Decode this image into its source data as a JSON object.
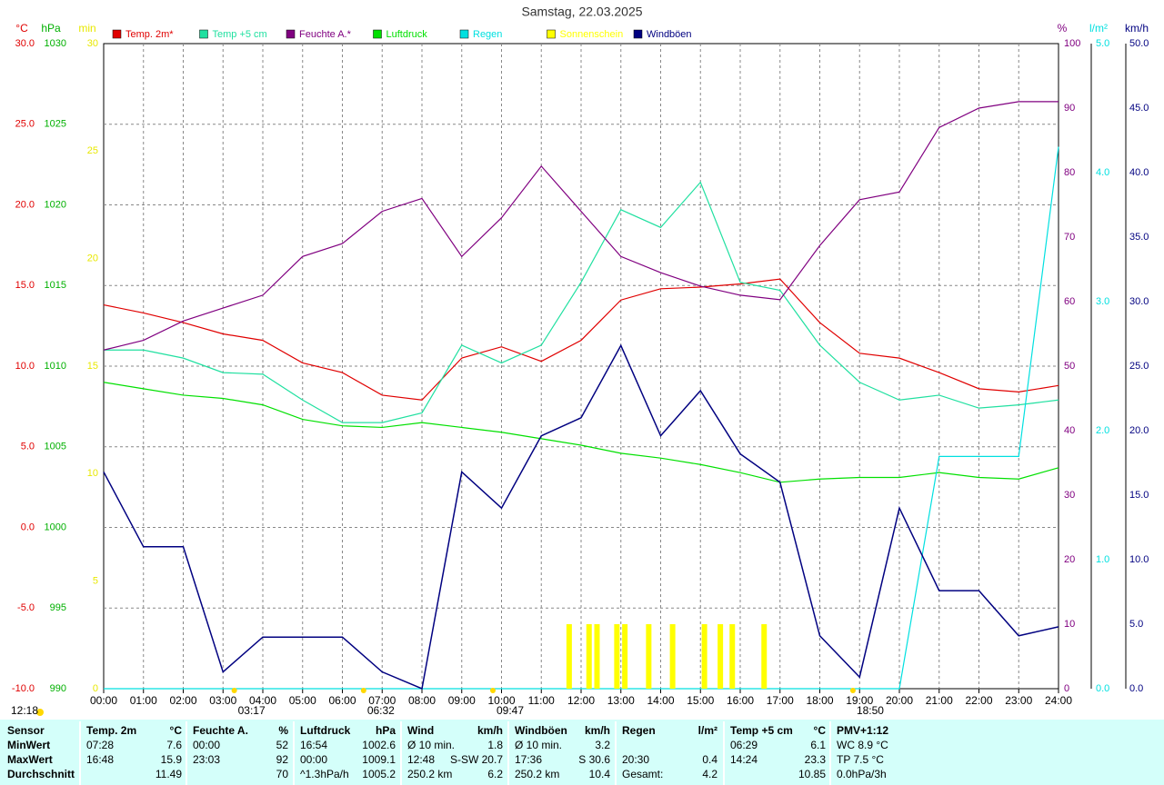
{
  "chart_data": {
    "type": "line",
    "title": "Samstag, 22.03.2025",
    "xticks": [
      {
        "value": 0,
        "label": "00:00"
      },
      {
        "value": 1,
        "label": "01:00"
      },
      {
        "value": 2,
        "label": "02:00"
      },
      {
        "value": 3,
        "label": "03:00"
      },
      {
        "value": 4,
        "label": "04:00"
      },
      {
        "value": 5,
        "label": "05:00"
      },
      {
        "value": 6,
        "label": "06:00"
      },
      {
        "value": 7,
        "label": "07:00"
      },
      {
        "value": 8,
        "label": "08:00"
      },
      {
        "value": 9,
        "label": "09:00"
      },
      {
        "value": 10,
        "label": "10:00"
      },
      {
        "value": 11,
        "label": "11:00"
      },
      {
        "value": 12,
        "label": "12:00"
      },
      {
        "value": 13,
        "label": "13:00"
      },
      {
        "value": 14,
        "label": "14:00"
      },
      {
        "value": 15,
        "label": "15:00"
      },
      {
        "value": 16,
        "label": "16:00"
      },
      {
        "value": 17,
        "label": "17:00"
      },
      {
        "value": 18,
        "label": "18:00"
      },
      {
        "value": 19,
        "label": "19:00"
      },
      {
        "value": 20,
        "label": "20:00"
      },
      {
        "value": 21,
        "label": "21:00"
      },
      {
        "value": 22,
        "label": "22:00"
      },
      {
        "value": 23,
        "label": "23:00"
      },
      {
        "value": 24,
        "label": "24:00"
      }
    ],
    "xlim": [
      0,
      24
    ],
    "grid": true,
    "axes": {
      "temp": {
        "label": "°C",
        "color": "#e00000",
        "lim": [
          -10,
          30
        ],
        "ticks": [
          {
            "value": 30,
            "label": "30.0"
          },
          {
            "value": 25,
            "label": "25.0"
          },
          {
            "value": 20,
            "label": "20.0"
          },
          {
            "value": 15,
            "label": "15.0"
          },
          {
            "value": 10,
            "label": "10.0"
          },
          {
            "value": 5,
            "label": "5.0"
          },
          {
            "value": 0,
            "label": "0.0"
          },
          {
            "value": -5,
            "label": "-5.0"
          },
          {
            "value": -10,
            "label": "-10.0"
          }
        ]
      },
      "press": {
        "label": "hPa",
        "color": "#00b000",
        "lim": [
          990,
          1030
        ],
        "ticks": [
          1030,
          1025,
          1020,
          1015,
          1010,
          1005,
          1000,
          995,
          990
        ]
      },
      "sun": {
        "label": "min",
        "color": "#e8e800",
        "lim": [
          0,
          30
        ],
        "ticks": [
          30,
          25,
          20,
          15,
          10,
          5,
          0
        ]
      },
      "hum": {
        "label": "%",
        "color": "#800080",
        "lim": [
          0,
          100
        ],
        "ticks": [
          100,
          90,
          80,
          70,
          60,
          50,
          40,
          30,
          20,
          10,
          0
        ]
      },
      "rain": {
        "label": "l/m²",
        "color": "#00e0e0",
        "lim": [
          0,
          5
        ],
        "ticks": [
          {
            "value": 5,
            "label": "5.0"
          },
          {
            "value": 4,
            "label": "4.0"
          },
          {
            "value": 3,
            "label": "3.0"
          },
          {
            "value": 2,
            "label": "2.0"
          },
          {
            "value": 1,
            "label": "1.0"
          },
          {
            "value": 0,
            "label": "0.0"
          }
        ]
      },
      "wind": {
        "label": "km/h",
        "color": "#000080",
        "lim": [
          0,
          50
        ],
        "ticks": [
          {
            "value": 50,
            "label": "50.0"
          },
          {
            "value": 45,
            "label": "45.0"
          },
          {
            "value": 40,
            "label": "40.0"
          },
          {
            "value": 35,
            "label": "35.0"
          },
          {
            "value": 30,
            "label": "30.0"
          },
          {
            "value": 25,
            "label": "25.0"
          },
          {
            "value": 20,
            "label": "20.0"
          },
          {
            "value": 15,
            "label": "15.0"
          },
          {
            "value": 10,
            "label": "10.0"
          },
          {
            "value": 5,
            "label": "5.0"
          },
          {
            "value": 0,
            "label": "0.0"
          }
        ]
      }
    },
    "x": [
      0,
      1,
      2,
      3,
      4,
      5,
      6,
      7,
      8,
      9,
      10,
      11,
      12,
      13,
      14,
      15,
      16,
      17,
      18,
      19,
      20,
      21,
      22,
      23,
      24
    ],
    "series": [
      {
        "name": "Temp. 2m*",
        "color": "#e00000",
        "axis": "temp",
        "values": [
          13.8,
          13.3,
          12.7,
          12.0,
          11.6,
          10.2,
          9.6,
          8.2,
          7.9,
          10.5,
          11.2,
          10.3,
          11.6,
          14.1,
          14.8,
          14.9,
          15.1,
          15.4,
          12.7,
          10.8,
          10.5,
          9.6,
          8.6,
          8.4,
          8.8
        ]
      },
      {
        "name": "Temp +5 cm",
        "color": "#20e0a0",
        "axis": "temp",
        "values": [
          11.0,
          11.0,
          10.5,
          9.6,
          9.5,
          7.9,
          6.5,
          6.5,
          7.1,
          11.3,
          10.2,
          11.3,
          15.2,
          19.7,
          18.6,
          21.4,
          15.2,
          14.7,
          11.3,
          9.0,
          7.9,
          8.2,
          7.4,
          7.6,
          7.9
        ]
      },
      {
        "name": "Feuchte A.*",
        "color": "#800080",
        "axis": "hum",
        "values": [
          52.5,
          54,
          57,
          59,
          61,
          67,
          69,
          74,
          76,
          67,
          73,
          81,
          74,
          67,
          64.5,
          62.4,
          61,
          60.3,
          68.7,
          75.8,
          77,
          87,
          90,
          91,
          91
        ]
      },
      {
        "name": "Luftdruck",
        "color": "#00e000",
        "axis": "press",
        "values": [
          1009.0,
          1008.6,
          1008.2,
          1008.0,
          1007.6,
          1006.7,
          1006.3,
          1006.2,
          1006.5,
          1006.2,
          1005.9,
          1005.5,
          1005.1,
          1004.6,
          1004.3,
          1003.9,
          1003.4,
          1002.8,
          1003.0,
          1003.1,
          1003.1,
          1003.4,
          1003.1,
          1003.0,
          1003.7
        ]
      },
      {
        "name": "Regen",
        "color": "#00e0e0",
        "axis": "rain",
        "values": [
          0,
          0,
          0,
          0,
          0,
          0,
          0,
          0,
          0,
          0,
          0,
          0,
          0,
          0,
          0,
          0,
          0,
          0,
          0,
          0,
          0,
          1.8,
          1.8,
          1.8,
          4.2
        ]
      },
      {
        "name": "Sonnenschein",
        "color": "#ffff00",
        "axis": "sun",
        "kind": "bar",
        "x": [
          11.7,
          12.2,
          12.4,
          12.9,
          13.1,
          13.7,
          14.3,
          15.1,
          15.5,
          15.8,
          16.6
        ],
        "values": [
          3,
          3,
          3,
          3,
          3,
          3,
          3,
          3,
          3,
          3,
          3
        ]
      },
      {
        "name": "Windböen",
        "color": "#000080",
        "axis": "wind",
        "values": [
          16.8,
          11,
          11,
          1.3,
          4,
          4,
          4,
          1.3,
          0,
          16.8,
          14,
          19.6,
          21,
          26.6,
          19.6,
          23.1,
          18.2,
          16,
          4.1,
          0.9,
          14,
          7.6,
          7.6,
          4.1,
          4.8
        ]
      }
    ],
    "day_length": "12:18",
    "annotations": [
      {
        "text": "03:17",
        "x": 3.283
      },
      {
        "text": "06:32",
        "x": 6.533
      },
      {
        "text": "09:47",
        "x": 9.783
      },
      {
        "text": "18:50",
        "x": 18.833
      }
    ]
  },
  "table": {
    "corner": "Sensor",
    "row_labels": [
      "MinWert",
      "MaxWert",
      "Durchschnitt"
    ],
    "columns": [
      {
        "name": "Temp. 2m",
        "unit": "°C",
        "cells": [
          [
            "07:28",
            "7.6"
          ],
          [
            "16:48",
            "15.9"
          ],
          [
            "11.49"
          ]
        ]
      },
      {
        "name": "Feuchte A.",
        "unit": "%",
        "cells": [
          [
            "00:00",
            "52"
          ],
          [
            "23:03",
            "92"
          ],
          [
            "70"
          ]
        ]
      },
      {
        "name": "Luftdruck",
        "unit": "hPa",
        "cells": [
          [
            "16:54",
            "1002.6"
          ],
          [
            "00:00",
            "1009.1"
          ],
          [
            "^1.3hPa/h",
            "1005.2"
          ]
        ]
      },
      {
        "name": "Wind",
        "unit": "km/h",
        "cells": [
          [
            "Ø 10 min.",
            "1.8"
          ],
          [
            "12:48",
            "S-SW 20.7"
          ],
          [
            "250.2 km",
            "6.2"
          ]
        ]
      },
      {
        "name": "Windböen",
        "unit": "km/h",
        "cells": [
          [
            "Ø 10 min.",
            "3.2"
          ],
          [
            "17:36",
            "S 30.6"
          ],
          [
            "250.2 km",
            "10.4"
          ]
        ]
      },
      {
        "name": "Regen",
        "unit": "l/m²",
        "cells": [
          [],
          [
            "20:30",
            "0.4"
          ],
          [
            "Gesamt:",
            "4.2"
          ]
        ]
      },
      {
        "name": "Temp +5 cm",
        "unit": "°C",
        "cells": [
          [
            "06:29",
            "6.1"
          ],
          [
            "14:24",
            "23.3"
          ],
          [
            "10.85"
          ]
        ]
      },
      {
        "name": "PMV+1:12",
        "cells": [
          [
            "WC 8.9 °C"
          ],
          [
            "TP 7.5 °C"
          ],
          [
            "0.0hPa/3h"
          ]
        ]
      }
    ]
  }
}
